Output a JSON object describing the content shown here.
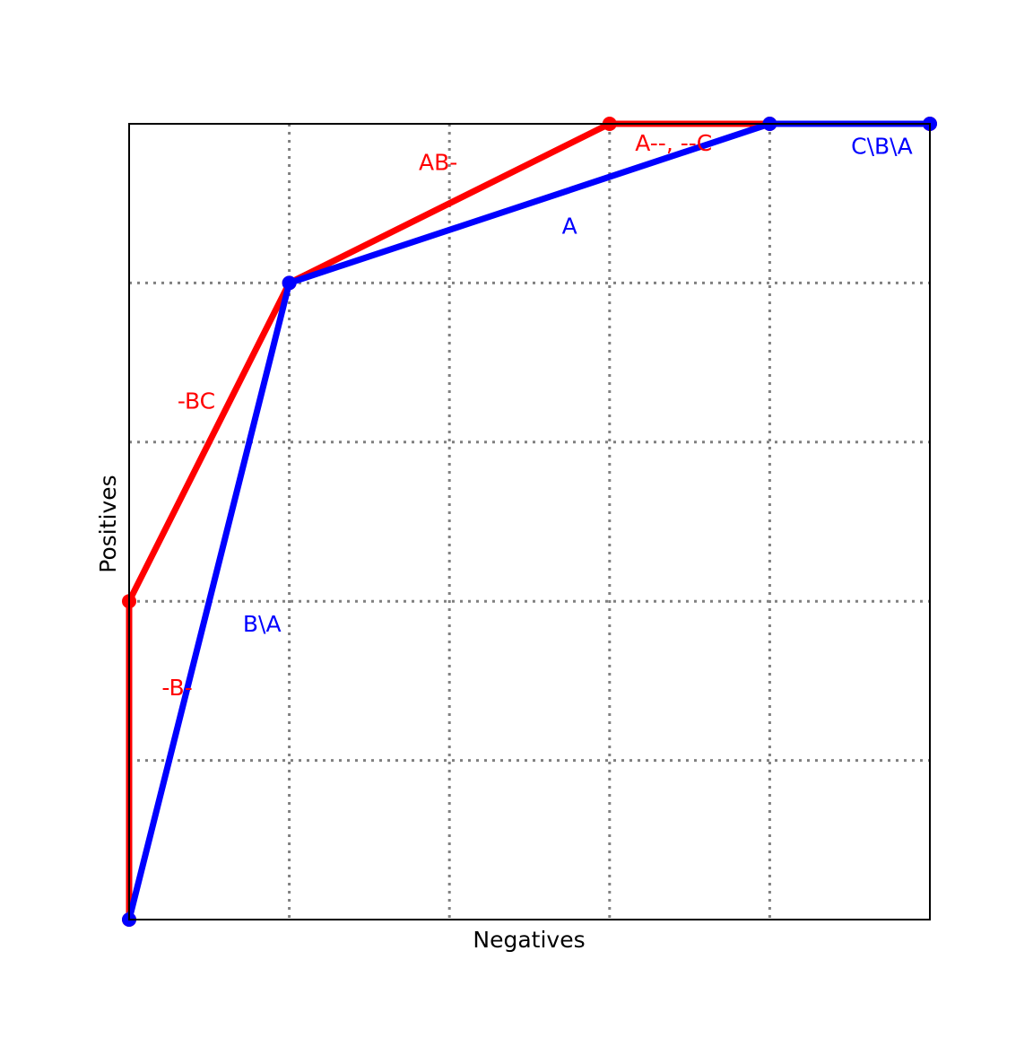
{
  "chart_data": {
    "type": "line",
    "xlabel": "Negatives",
    "ylabel": "Positives",
    "xlim": [
      0,
      5
    ],
    "ylim": [
      0,
      5
    ],
    "grid": true,
    "grid_style": "dotted",
    "xticks": [
      1,
      2,
      3,
      4
    ],
    "yticks": [
      1,
      2,
      3,
      4
    ],
    "series": [
      {
        "color": "#ff0000",
        "points": [
          [
            0,
            0
          ],
          [
            0,
            2
          ],
          [
            1,
            4
          ],
          [
            3,
            5
          ],
          [
            4,
            5
          ],
          [
            5,
            5
          ]
        ],
        "labels": [
          {
            "text": "-B-",
            "x": 0.3,
            "y": 1.45
          },
          {
            "text": "-BC",
            "x": 0.42,
            "y": 3.25
          },
          {
            "text": "AB-",
            "x": 1.93,
            "y": 4.75
          },
          {
            "text": "A--, --C",
            "x": 3.4,
            "y": 4.87
          }
        ]
      },
      {
        "color": "#0000ff",
        "points": [
          [
            0,
            0
          ],
          [
            1,
            4
          ],
          [
            4,
            5
          ],
          [
            5,
            5
          ]
        ],
        "labels": [
          {
            "text": "B\\A",
            "x": 0.83,
            "y": 1.85
          },
          {
            "text": "A",
            "x": 2.75,
            "y": 4.35
          },
          {
            "text": "C\\B\\A",
            "x": 4.7,
            "y": 4.85
          }
        ]
      }
    ]
  }
}
